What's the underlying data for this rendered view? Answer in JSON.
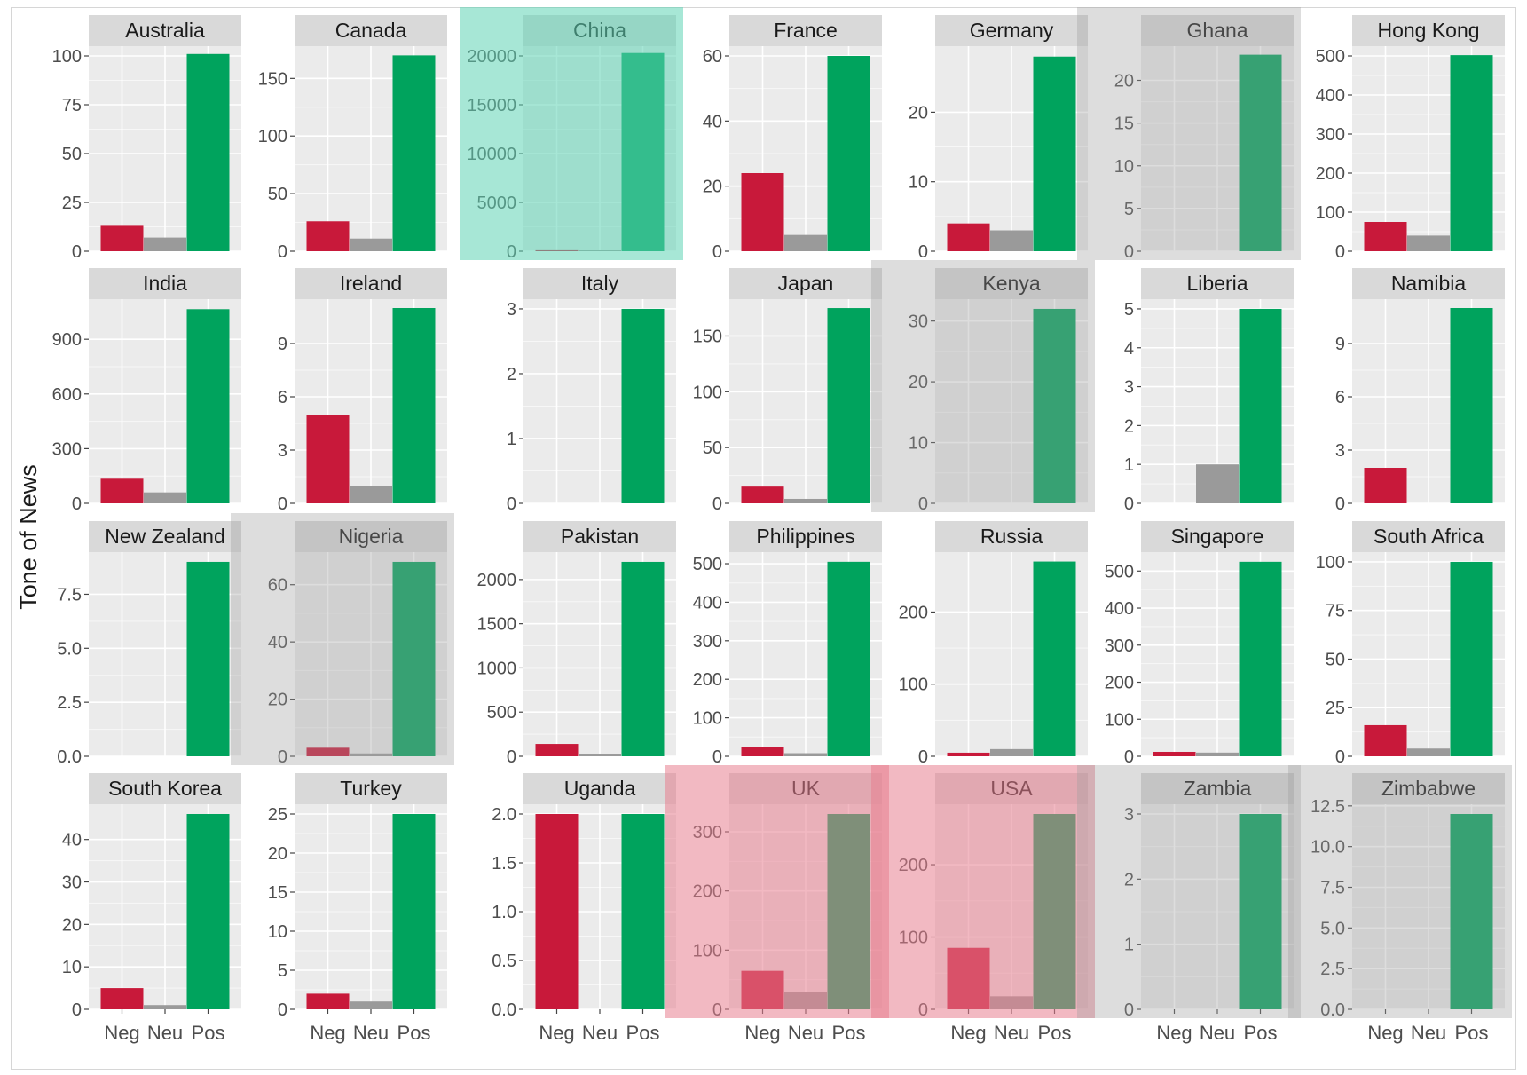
{
  "chart_data": {
    "type": "bar",
    "layout": "facet-grid",
    "ylabel": "Tone of News",
    "xlabel": "",
    "categories": [
      "Neg",
      "Neu",
      "Pos"
    ],
    "colors": {
      "Neg": "#c8193a",
      "Neu": "#9a9a9a",
      "Pos": "#00a35d"
    },
    "highlight_colors": {
      "teal": "#5fd3b5",
      "gray": "#9e9e9e",
      "red": "#e77f90"
    },
    "facets": [
      {
        "name": "Australia",
        "values": [
          13,
          7,
          101
        ],
        "ylim": [
          0,
          105
        ],
        "ticks": [
          0,
          25,
          50,
          75,
          100
        ],
        "tick_labels": [
          "0",
          "25",
          "50",
          "75",
          "100"
        ],
        "highlight": ""
      },
      {
        "name": "Canada",
        "values": [
          26,
          11,
          170
        ],
        "ylim": [
          0,
          178
        ],
        "ticks": [
          0,
          50,
          100,
          150
        ],
        "tick_labels": [
          "0",
          "50",
          "100",
          "150"
        ],
        "highlight": ""
      },
      {
        "name": "China",
        "values": [
          100,
          90,
          20300
        ],
        "ylim": [
          0,
          21000
        ],
        "ticks": [
          0,
          5000,
          10000,
          15000,
          20000
        ],
        "tick_labels": [
          "0",
          "5000",
          "10000",
          "15000",
          "20000"
        ],
        "highlight": "teal"
      },
      {
        "name": "France",
        "values": [
          24,
          5,
          60
        ],
        "ylim": [
          0,
          63
        ],
        "ticks": [
          0,
          20,
          40,
          60
        ],
        "tick_labels": [
          "0",
          "20",
          "40",
          "60"
        ],
        "highlight": ""
      },
      {
        "name": "Germany",
        "values": [
          4,
          3,
          28
        ],
        "ylim": [
          0,
          29.5
        ],
        "ticks": [
          0,
          10,
          20
        ],
        "tick_labels": [
          "0",
          "10",
          "20"
        ],
        "highlight": ""
      },
      {
        "name": "Ghana",
        "values": [
          0,
          0,
          23
        ],
        "ylim": [
          0,
          24
        ],
        "ticks": [
          0,
          5,
          10,
          15,
          20
        ],
        "tick_labels": [
          "0",
          "5",
          "10",
          "15",
          "20"
        ],
        "highlight": "gray"
      },
      {
        "name": "Hong Kong",
        "values": [
          75,
          40,
          502
        ],
        "ylim": [
          0,
          525
        ],
        "ticks": [
          0,
          100,
          200,
          300,
          400,
          500
        ],
        "tick_labels": [
          "0",
          "100",
          "200",
          "300",
          "400",
          "500"
        ],
        "highlight": ""
      },
      {
        "name": "India",
        "values": [
          135,
          60,
          1065
        ],
        "ylim": [
          0,
          1120
        ],
        "ticks": [
          0,
          300,
          600,
          900
        ],
        "tick_labels": [
          "0",
          "300",
          "600",
          "900"
        ],
        "highlight": ""
      },
      {
        "name": "Ireland",
        "values": [
          5,
          1,
          11
        ],
        "ylim": [
          0,
          11.5
        ],
        "ticks": [
          0,
          3,
          6,
          9
        ],
        "tick_labels": [
          "0",
          "3",
          "6",
          "9"
        ],
        "highlight": ""
      },
      {
        "name": "Italy",
        "values": [
          0,
          0,
          3
        ],
        "ylim": [
          0,
          3.15
        ],
        "ticks": [
          0,
          1,
          2,
          3
        ],
        "tick_labels": [
          "0",
          "1",
          "2",
          "3"
        ],
        "highlight": ""
      },
      {
        "name": "Japan",
        "values": [
          15,
          4,
          175
        ],
        "ylim": [
          0,
          183
        ],
        "ticks": [
          0,
          50,
          100,
          150
        ],
        "tick_labels": [
          "0",
          "50",
          "100",
          "150"
        ],
        "highlight": ""
      },
      {
        "name": "Kenya",
        "values": [
          0,
          0,
          32
        ],
        "ylim": [
          0,
          33.6
        ],
        "ticks": [
          0,
          10,
          20,
          30
        ],
        "tick_labels": [
          "0",
          "10",
          "20",
          "30"
        ],
        "highlight": "gray"
      },
      {
        "name": "Liberia",
        "values": [
          0,
          1,
          5
        ],
        "ylim": [
          0,
          5.25
        ],
        "ticks": [
          0,
          1,
          2,
          3,
          4,
          5
        ],
        "tick_labels": [
          "0",
          "1",
          "2",
          "3",
          "4",
          "5"
        ],
        "highlight": ""
      },
      {
        "name": "Namibia",
        "values": [
          2,
          0,
          11
        ],
        "ylim": [
          0,
          11.5
        ],
        "ticks": [
          0,
          3,
          6,
          9
        ],
        "tick_labels": [
          "0",
          "3",
          "6",
          "9"
        ],
        "highlight": ""
      },
      {
        "name": "New Zealand",
        "values": [
          0,
          0,
          9
        ],
        "ylim": [
          0,
          9.45
        ],
        "ticks": [
          0,
          2.5,
          5,
          7.5
        ],
        "tick_labels": [
          "0.0",
          "2.5",
          "5.0",
          "7.5"
        ],
        "highlight": ""
      },
      {
        "name": "Nigeria",
        "values": [
          3,
          1,
          68
        ],
        "ylim": [
          0,
          71.4
        ],
        "ticks": [
          0,
          20,
          40,
          60
        ],
        "tick_labels": [
          "0",
          "20",
          "40",
          "60"
        ],
        "highlight": "gray"
      },
      {
        "name": "Pakistan",
        "values": [
          140,
          30,
          2200
        ],
        "ylim": [
          0,
          2310
        ],
        "ticks": [
          0,
          500,
          1000,
          1500,
          2000
        ],
        "tick_labels": [
          "0",
          "500",
          "1000",
          "1500",
          "2000"
        ],
        "highlight": ""
      },
      {
        "name": "Philippines",
        "values": [
          25,
          8,
          505
        ],
        "ylim": [
          0,
          530
        ],
        "ticks": [
          0,
          100,
          200,
          300,
          400,
          500
        ],
        "tick_labels": [
          "0",
          "100",
          "200",
          "300",
          "400",
          "500"
        ],
        "highlight": ""
      },
      {
        "name": "Russia",
        "values": [
          5,
          10,
          270
        ],
        "ylim": [
          0,
          283
        ],
        "ticks": [
          0,
          100,
          200
        ],
        "tick_labels": [
          "0",
          "100",
          "200"
        ],
        "highlight": ""
      },
      {
        "name": "Singapore",
        "values": [
          12,
          10,
          525
        ],
        "ylim": [
          0,
          551
        ],
        "ticks": [
          0,
          100,
          200,
          300,
          400,
          500
        ],
        "tick_labels": [
          "0",
          "100",
          "200",
          "300",
          "400",
          "500"
        ],
        "highlight": ""
      },
      {
        "name": "South Africa",
        "values": [
          16,
          4,
          100
        ],
        "ylim": [
          0,
          105
        ],
        "ticks": [
          0,
          25,
          50,
          75,
          100
        ],
        "tick_labels": [
          "0",
          "25",
          "50",
          "75",
          "100"
        ],
        "highlight": ""
      },
      {
        "name": "South Korea",
        "values": [
          5,
          1,
          46
        ],
        "ylim": [
          0,
          48.3
        ],
        "ticks": [
          0,
          10,
          20,
          30,
          40
        ],
        "tick_labels": [
          "0",
          "10",
          "20",
          "30",
          "40"
        ],
        "highlight": ""
      },
      {
        "name": "Turkey",
        "values": [
          2,
          1,
          25
        ],
        "ylim": [
          0,
          26.25
        ],
        "ticks": [
          0,
          5,
          10,
          15,
          20,
          25
        ],
        "tick_labels": [
          "0",
          "5",
          "10",
          "15",
          "20",
          "25"
        ],
        "highlight": ""
      },
      {
        "name": "Uganda",
        "values": [
          2,
          0,
          2
        ],
        "ylim": [
          0,
          2.1
        ],
        "ticks": [
          0,
          0.5,
          1,
          1.5,
          2
        ],
        "tick_labels": [
          "0.0",
          "0.5",
          "1.0",
          "1.5",
          "2.0"
        ],
        "highlight": ""
      },
      {
        "name": "UK",
        "values": [
          65,
          30,
          330
        ],
        "ylim": [
          0,
          346.5
        ],
        "ticks": [
          0,
          100,
          200,
          300
        ],
        "tick_labels": [
          "0",
          "100",
          "200",
          "300"
        ],
        "highlight": "red"
      },
      {
        "name": "USA",
        "values": [
          85,
          18,
          270
        ],
        "ylim": [
          0,
          283.5
        ],
        "ticks": [
          0,
          100,
          200
        ],
        "tick_labels": [
          "0",
          "100",
          "200"
        ],
        "highlight": "red"
      },
      {
        "name": "Zambia",
        "values": [
          0,
          0,
          3
        ],
        "ylim": [
          0,
          3.15
        ],
        "ticks": [
          0,
          1,
          2,
          3
        ],
        "tick_labels": [
          "0",
          "1",
          "2",
          "3"
        ],
        "highlight": "gray"
      },
      {
        "name": "Zimbabwe",
        "values": [
          0,
          0,
          12
        ],
        "ylim": [
          0,
          12.6
        ],
        "ticks": [
          0,
          2.5,
          5,
          7.5,
          10,
          12.5
        ],
        "tick_labels": [
          "0.0",
          "2.5",
          "5.0",
          "7.5",
          "10.0",
          "12.5"
        ],
        "highlight": "gray"
      }
    ]
  }
}
